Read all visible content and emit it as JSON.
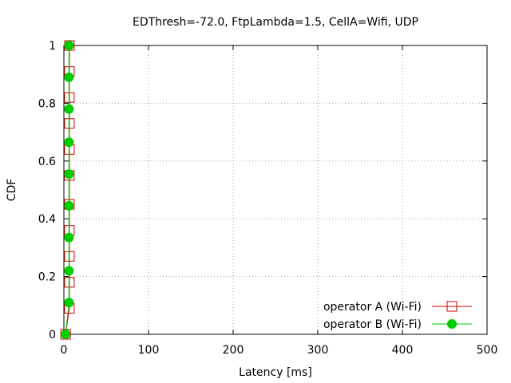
{
  "chart_data": {
    "type": "line",
    "title": "EDThresh=-72.0, FtpLambda=1.5, CellA=Wifi, UDP",
    "xlabel": "Latency [ms]",
    "ylabel": "CDF",
    "xlim": [
      0,
      500
    ],
    "ylim": [
      0,
      1
    ],
    "xticks": [
      0,
      100,
      200,
      300,
      400,
      500
    ],
    "yticks": [
      0,
      0.2,
      0.4,
      0.6,
      0.8,
      1
    ],
    "xtick_labels": [
      "0",
      "100",
      "200",
      "300",
      "400",
      "500"
    ],
    "ytick_labels": [
      "0",
      "0.2",
      "0.4",
      "0.6",
      "0.8",
      "1"
    ],
    "grid": true,
    "legend_position": "bottom-right",
    "series": [
      {
        "name": "operator A (Wi-Fi)",
        "color": "#cc0000",
        "marker": "open-square",
        "x": [
          2,
          6.5,
          6.5,
          6.5,
          6.5,
          6.5,
          6.5,
          6.5,
          6.5,
          6.5,
          6.5,
          6.5
        ],
        "y": [
          0,
          0.09,
          0.18,
          0.27,
          0.36,
          0.45,
          0.55,
          0.64,
          0.73,
          0.82,
          0.91,
          1.0
        ]
      },
      {
        "name": "operator B (Wi-Fi)",
        "color": "#00cc00",
        "marker": "filled-circle",
        "x": [
          2,
          6,
          6,
          6,
          6,
          6,
          6,
          6,
          6,
          6,
          6
        ],
        "y": [
          0,
          0.11,
          0.22,
          0.335,
          0.445,
          0.555,
          0.665,
          0.78,
          0.89,
          1.0,
          1.0
        ]
      }
    ]
  }
}
